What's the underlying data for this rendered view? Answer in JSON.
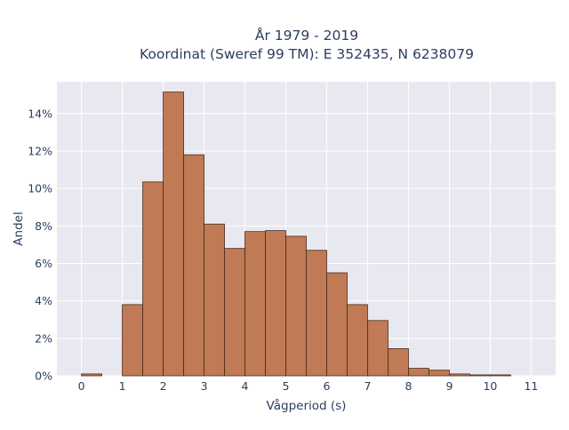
{
  "chart_data": {
    "type": "bar",
    "title_line1": "År 1979 - 2019",
    "title_line2": "Koordinat (Sweref 99 TM): E 352435, N 6238079",
    "xlabel": "Vågperiod (s)",
    "ylabel": "Andel",
    "bin_width": 0.5,
    "bin_starts": [
      0,
      0.5,
      1,
      1.5,
      2,
      2.5,
      3,
      3.5,
      4,
      4.5,
      5,
      5.5,
      6,
      6.5,
      7,
      7.5,
      8,
      8.5,
      9,
      9.5,
      10,
      10.5
    ],
    "values": [
      0.1,
      0,
      3.8,
      10.35,
      15.15,
      11.8,
      8.1,
      6.8,
      7.7,
      7.75,
      7.45,
      6.7,
      5.5,
      3.8,
      2.95,
      1.45,
      0.4,
      0.3,
      0.1,
      0.05,
      0.05,
      0
    ],
    "x_ticks": [
      0,
      1,
      2,
      3,
      4,
      5,
      6,
      7,
      8,
      9,
      10,
      11
    ],
    "x_tick_labels": [
      "0",
      "1",
      "2",
      "3",
      "4",
      "5",
      "6",
      "7",
      "8",
      "9",
      "10",
      "11"
    ],
    "y_ticks": [
      0,
      2,
      4,
      6,
      8,
      10,
      12,
      14
    ],
    "y_tick_labels": [
      "0%",
      "2%",
      "4%",
      "6%",
      "8%",
      "10%",
      "12%",
      "14%"
    ],
    "xlim": [
      -0.6,
      11.6
    ],
    "ylim": [
      0,
      15.7
    ],
    "grid": true,
    "colors": {
      "bar_fill": "#c07a55",
      "bar_edge": "#4a2a1a",
      "plot_bg": "#e8e8f1",
      "grid": "#ffffff",
      "text": "#2a3f5f"
    }
  }
}
